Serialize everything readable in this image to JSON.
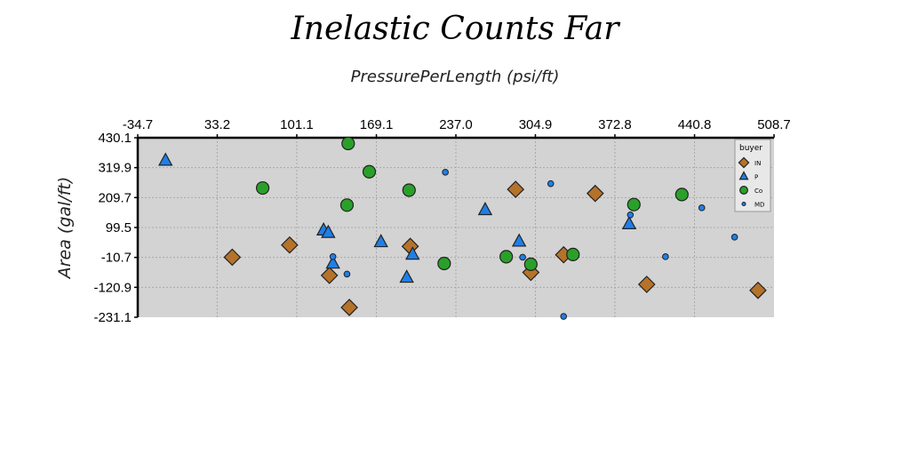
{
  "chart_data": {
    "type": "scatter",
    "title": "Inelastic Counts Far",
    "xlabel": "PressurePerLength (psi/ft)",
    "ylabel": "Area (gal/ft)",
    "xlim": [
      -34.7,
      508.7
    ],
    "ylim": [
      -231.1,
      430.1
    ],
    "x_ticks": [
      "-34.7",
      "33.2",
      "101.1",
      "169.1",
      "237.0",
      "304.9",
      "372.8",
      "440.8",
      "508.7"
    ],
    "y_ticks": [
      "430.1",
      "319.9",
      "209.7",
      "99.5",
      "-10.7",
      "-120.9",
      "-231.1"
    ],
    "grid": true,
    "x_axis_position": "top",
    "legend": {
      "title": "buyer",
      "position": "top-right"
    },
    "series": [
      {
        "name": "IN",
        "marker": "diamond",
        "color": "#b5722a",
        "points": [
          [
            46,
            -10
          ],
          [
            95,
            35
          ],
          [
            129,
            -77
          ],
          [
            146,
            -195
          ],
          [
            198,
            30
          ],
          [
            288,
            240
          ],
          [
            301,
            -66
          ],
          [
            329,
            -1
          ],
          [
            356,
            225
          ],
          [
            400,
            -110
          ],
          [
            495,
            -132
          ]
        ]
      },
      {
        "name": "P",
        "marker": "triangle",
        "color": "#1f7fe8",
        "points": [
          [
            -11,
            346
          ],
          [
            124,
            89
          ],
          [
            128,
            80
          ],
          [
            132,
            -33
          ],
          [
            173,
            46
          ],
          [
            195,
            -85
          ],
          [
            200,
            0
          ],
          [
            262,
            164
          ],
          [
            291,
            48
          ],
          [
            385,
            112
          ]
        ]
      },
      {
        "name": "Co",
        "marker": "circle",
        "color": "#2aa02a",
        "points": [
          [
            72,
            245
          ],
          [
            144,
            182
          ],
          [
            145,
            409
          ],
          [
            163,
            305
          ],
          [
            197,
            237
          ],
          [
            227,
            -33
          ],
          [
            280,
            -8
          ],
          [
            301,
            -36
          ],
          [
            337,
            0
          ],
          [
            389,
            184
          ],
          [
            430,
            221
          ]
        ]
      },
      {
        "name": "MD",
        "marker": "dot",
        "color": "#1f7fe8",
        "points": [
          [
            132,
            -8
          ],
          [
            144,
            -72
          ],
          [
            228,
            303
          ],
          [
            294,
            -10
          ],
          [
            318,
            261
          ],
          [
            329,
            -228
          ],
          [
            386,
            146
          ],
          [
            416,
            -8
          ],
          [
            447,
            172
          ],
          [
            475,
            64
          ]
        ]
      }
    ]
  }
}
